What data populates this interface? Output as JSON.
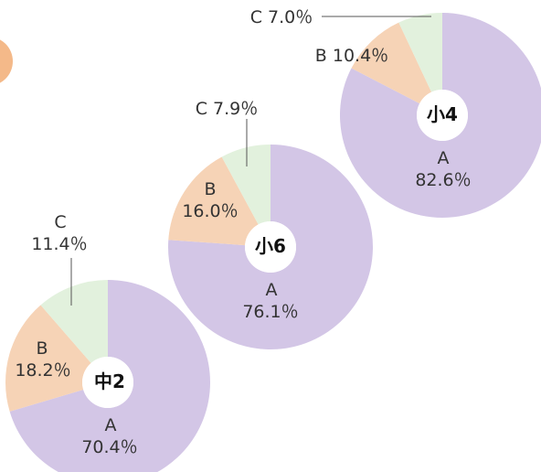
{
  "chart_data": [
    {
      "type": "pie",
      "center_label": "小4",
      "slices": [
        {
          "name": "A",
          "value": 82.6,
          "label": "A",
          "value_label": "82.6％",
          "color": "#d3c6e6"
        },
        {
          "name": "B",
          "value": 10.4,
          "label": "B 10.4％",
          "color": "#f6d3b6"
        },
        {
          "name": "C",
          "value": 7.0,
          "label": "C 7.0％",
          "color": "#e2f1dd"
        }
      ]
    },
    {
      "type": "pie",
      "center_label": "小6",
      "slices": [
        {
          "name": "A",
          "value": 76.1,
          "label": "A",
          "value_label": "76.1％",
          "color": "#d3c6e6"
        },
        {
          "name": "B",
          "value": 16.0,
          "label": "B",
          "value_label": "16.0％",
          "color": "#f6d3b6"
        },
        {
          "name": "C",
          "value": 7.9,
          "label": "C 7.9％",
          "color": "#e2f1dd"
        }
      ]
    },
    {
      "type": "pie",
      "center_label": "中2",
      "slices": [
        {
          "name": "A",
          "value": 70.4,
          "label": "A",
          "value_label": "70.4％",
          "color": "#d3c6e6"
        },
        {
          "name": "B",
          "value": 18.2,
          "label": "B",
          "value_label": "18.2％",
          "color": "#f6d3b6"
        },
        {
          "name": "C",
          "value": 11.4,
          "label": "C",
          "value_label": "11.4％",
          "color": "#e2f1dd"
        }
      ]
    }
  ]
}
